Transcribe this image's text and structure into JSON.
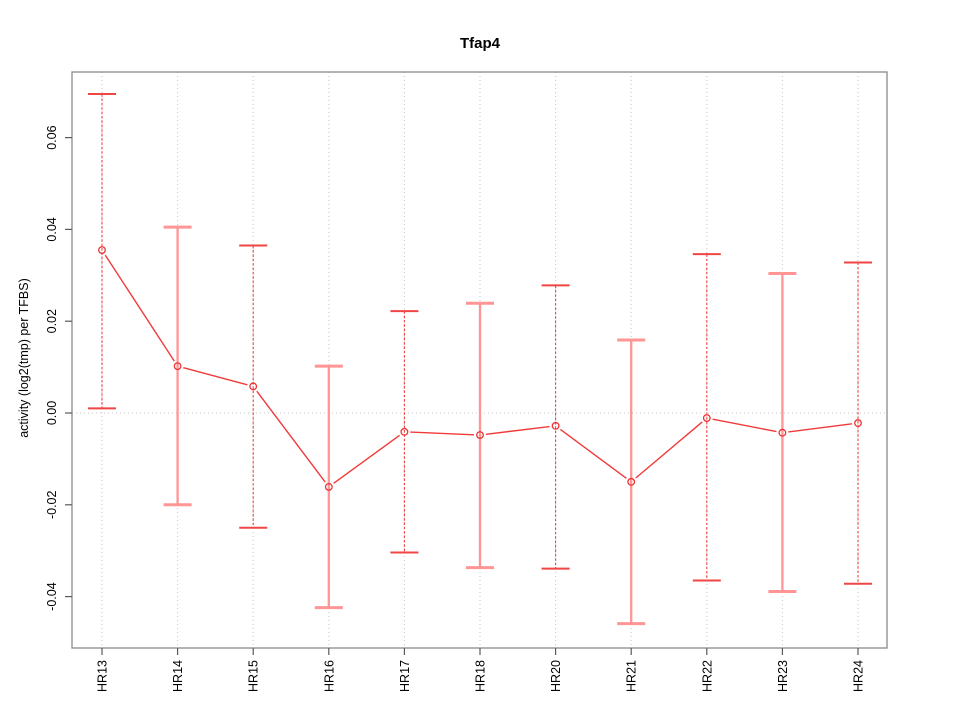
{
  "title": "Tfap4",
  "chart_data": {
    "type": "line",
    "title": "Tfap4",
    "xlabel": "",
    "ylabel": "activity (log2(tmp) per TFBS)",
    "categories": [
      "HR13",
      "HR14",
      "HR15",
      "HR16",
      "HR17",
      "HR18",
      "HR20",
      "HR21",
      "HR22",
      "HR23",
      "HR24"
    ],
    "series": [
      {
        "name": "activity",
        "values": [
          0.0355,
          0.0102,
          0.0058,
          -0.0161,
          -0.0041,
          -0.0048,
          -0.0028,
          -0.015,
          -0.0011,
          -0.0043,
          -0.0022
        ],
        "lower": [
          0.001,
          -0.02,
          -0.025,
          -0.0424,
          -0.0304,
          -0.0337,
          -0.0339,
          -0.0459,
          -0.0365,
          -0.0389,
          -0.0372
        ],
        "upper": [
          0.0695,
          0.0405,
          0.0365,
          0.0102,
          0.0222,
          0.0239,
          0.0278,
          0.0159,
          0.0346,
          0.0304,
          0.0328
        ]
      }
    ],
    "ytick_labels": [
      "-0.04",
      "-0.02",
      "0.00",
      "0.02",
      "0.04",
      "0.06"
    ],
    "ytick_values": [
      -0.04,
      -0.02,
      0.0,
      0.02,
      0.04,
      0.06
    ],
    "ylim": [
      -0.0511,
      0.0743
    ],
    "grid": {
      "vertical": "dotted line at every category",
      "horizontal": "dotted line at y=0 only"
    },
    "legend": "none",
    "marker": "open-circle"
  },
  "colors": {
    "line": "#f03b3b",
    "point": "#ee3434",
    "errorbar_strong": "#f04545",
    "errorbar_soft": "#ff9595",
    "grid": "#c6c6c6",
    "axis": "#5a5a5a",
    "box": "#8a8a8a",
    "text": "#000000",
    "background": "#ffffff"
  }
}
